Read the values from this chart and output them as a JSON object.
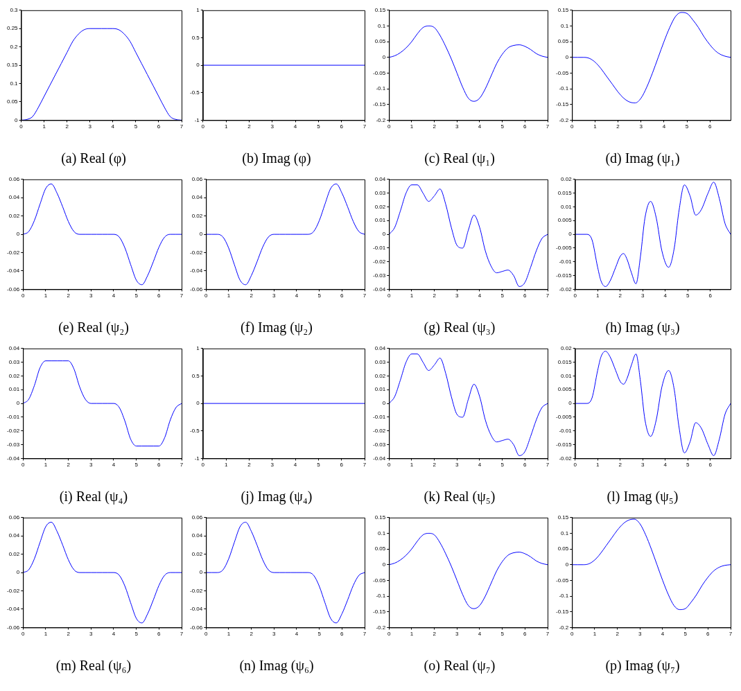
{
  "chart_data": [
    {
      "type": "line",
      "title": "(a) Real (φ)",
      "x": [
        0,
        0.25,
        0.5,
        0.75,
        1,
        1.25,
        1.5,
        1.75,
        2,
        2.25,
        2.5,
        2.75,
        3,
        3.25,
        3.5,
        3.75,
        4,
        4.25,
        4.5,
        4.75,
        5,
        5.25,
        5.5,
        5.75,
        6,
        6.25,
        6.5,
        6.75,
        7
      ],
      "xlim": [
        0,
        7
      ],
      "xticks": [
        0,
        1,
        2,
        3,
        4,
        5,
        6,
        7
      ],
      "ylim": [
        0,
        0.3
      ],
      "yticks": [
        0,
        0.05,
        0.1,
        0.15,
        0.2,
        0.25,
        0.3
      ],
      "series": [
        {
          "color": "#0000ff",
          "values": [
            0,
            0.002,
            0.01,
            0.035,
            0.065,
            0.095,
            0.125,
            0.155,
            0.185,
            0.215,
            0.235,
            0.247,
            0.25,
            0.25,
            0.25,
            0.25,
            0.25,
            0.247,
            0.235,
            0.215,
            0.185,
            0.155,
            0.125,
            0.095,
            0.065,
            0.035,
            0.01,
            0.002,
            0
          ]
        }
      ]
    },
    {
      "type": "line",
      "title": "(b) Imag (φ)",
      "x": [
        0,
        7
      ],
      "xlim": [
        0,
        7
      ],
      "xticks": [
        0,
        1,
        2,
        3,
        4,
        5,
        6,
        7
      ],
      "ylim": [
        -1,
        1
      ],
      "yticks": [
        -1,
        -0.5,
        0,
        0.5,
        1
      ],
      "series": [
        {
          "color": "#0000ff",
          "values": [
            0,
            0
          ]
        }
      ]
    },
    {
      "type": "line",
      "title": "(c) Real (ψ₁)",
      "x": [
        0,
        0.25,
        0.5,
        0.75,
        1,
        1.25,
        1.5,
        1.75,
        2,
        2.25,
        2.5,
        2.75,
        3,
        3.25,
        3.5,
        3.75,
        4,
        4.25,
        4.5,
        4.75,
        5,
        5.25,
        5.5,
        5.75,
        6,
        6.25,
        6.5,
        6.75,
        7
      ],
      "xlim": [
        0,
        7
      ],
      "xticks": [
        0,
        1,
        2,
        3,
        4,
        5,
        6,
        7
      ],
      "ylim": [
        -0.2,
        0.15
      ],
      "yticks": [
        -0.2,
        -0.15,
        -0.1,
        -0.05,
        0,
        0.05,
        0.1,
        0.15
      ],
      "series": [
        {
          "color": "#0000ff",
          "values": [
            0,
            0.005,
            0.015,
            0.03,
            0.05,
            0.075,
            0.095,
            0.1,
            0.095,
            0.07,
            0.035,
            -0.005,
            -0.05,
            -0.095,
            -0.13,
            -0.14,
            -0.13,
            -0.1,
            -0.06,
            -0.02,
            0.01,
            0.03,
            0.038,
            0.04,
            0.035,
            0.025,
            0.012,
            0.004,
            0
          ]
        }
      ]
    },
    {
      "type": "line",
      "title": "(d) Imag (ψ₁)",
      "x": [
        0,
        0.25,
        0.5,
        0.75,
        1,
        1.25,
        1.5,
        1.75,
        2,
        2.25,
        2.5,
        2.75,
        3,
        3.25,
        3.5,
        3.75,
        4,
        4.25,
        4.5,
        4.75,
        5,
        5.25,
        5.5,
        5.75,
        6,
        6.25,
        6.5,
        6.75,
        6.9
      ],
      "xlim": [
        0,
        6.9
      ],
      "xticks": [
        0,
        1,
        2,
        3,
        4,
        5,
        6
      ],
      "ylim": [
        -0.2,
        0.15
      ],
      "yticks": [
        -0.2,
        -0.15,
        -0.1,
        -0.05,
        0,
        0.05,
        0.1,
        0.15
      ],
      "series": [
        {
          "color": "#0000ff",
          "values": [
            0,
            0,
            0,
            -0.003,
            -0.015,
            -0.035,
            -0.06,
            -0.085,
            -0.11,
            -0.13,
            -0.142,
            -0.145,
            -0.13,
            -0.095,
            -0.05,
            0,
            0.05,
            0.095,
            0.13,
            0.143,
            0.14,
            0.12,
            0.095,
            0.065,
            0.04,
            0.02,
            0.008,
            0.002,
            0
          ]
        }
      ]
    },
    {
      "type": "line",
      "title": "(e) Real (ψ₂)",
      "x": [
        0,
        0.25,
        0.5,
        0.75,
        1,
        1.25,
        1.5,
        1.75,
        2,
        2.25,
        2.5,
        2.75,
        3,
        3.25,
        3.5,
        3.75,
        4,
        4.25,
        4.5,
        4.75,
        5,
        5.25,
        5.5,
        5.75,
        6,
        6.25,
        6.5,
        6.75,
        7
      ],
      "xlim": [
        0,
        7
      ],
      "xticks": [
        0,
        1,
        2,
        3,
        4,
        5,
        6,
        7
      ],
      "ylim": [
        -0.06,
        0.06
      ],
      "yticks": [
        -0.06,
        -0.04,
        -0.02,
        0,
        0.02,
        0.04,
        0.06
      ],
      "series": [
        {
          "color": "#0000ff",
          "values": [
            0,
            0.003,
            0.015,
            0.033,
            0.05,
            0.055,
            0.045,
            0.03,
            0.014,
            0.003,
            0,
            0,
            0,
            0,
            0,
            0,
            0,
            -0.003,
            -0.015,
            -0.033,
            -0.05,
            -0.055,
            -0.045,
            -0.03,
            -0.014,
            -0.003,
            0,
            0,
            0
          ]
        }
      ]
    },
    {
      "type": "line",
      "title": "(f) Imag (ψ₂)",
      "x": [
        0,
        0.25,
        0.5,
        0.75,
        1,
        1.25,
        1.5,
        1.75,
        2,
        2.25,
        2.5,
        2.75,
        3,
        3.25,
        3.5,
        3.75,
        4,
        4.25,
        4.5,
        4.75,
        5,
        5.25,
        5.5,
        5.75,
        6,
        6.25,
        6.5,
        6.75,
        7
      ],
      "xlim": [
        0,
        7
      ],
      "xticks": [
        0,
        1,
        2,
        3,
        4,
        5,
        6,
        7
      ],
      "ylim": [
        -0.06,
        0.06
      ],
      "yticks": [
        -0.06,
        -0.04,
        -0.02,
        0,
        0.02,
        0.04,
        0.06
      ],
      "series": [
        {
          "color": "#0000ff",
          "values": [
            0,
            0,
            0,
            -0.003,
            -0.015,
            -0.033,
            -0.05,
            -0.055,
            -0.045,
            -0.03,
            -0.014,
            -0.003,
            0,
            0,
            0,
            0,
            0,
            0,
            0,
            0.003,
            0.015,
            0.033,
            0.05,
            0.055,
            0.045,
            0.03,
            0.014,
            0.003,
            0
          ]
        }
      ]
    },
    {
      "type": "line",
      "title": "(g) Real (ψ₃)",
      "x": [
        0,
        0.25,
        0.5,
        0.75,
        1,
        1.25,
        1.5,
        1.75,
        2,
        2.25,
        2.5,
        2.75,
        3,
        3.25,
        3.5,
        3.75,
        4,
        4.25,
        4.5,
        4.75,
        5,
        5.25,
        5.5,
        5.75,
        6,
        6.25,
        6.5,
        6.75,
        7
      ],
      "xlim": [
        0,
        7
      ],
      "xticks": [
        0,
        1,
        2,
        3,
        4,
        5,
        6,
        7
      ],
      "ylim": [
        -0.04,
        0.04
      ],
      "yticks": [
        -0.04,
        -0.03,
        -0.02,
        -0.01,
        0,
        0.01,
        0.02,
        0.03,
        0.04
      ],
      "series": [
        {
          "color": "#0000ff",
          "values": [
            0,
            0.005,
            0.017,
            0.03,
            0.036,
            0.036,
            0.03,
            0.024,
            0.028,
            0.033,
            0.022,
            0.005,
            -0.008,
            -0.01,
            0.003,
            0.014,
            0.005,
            -0.012,
            -0.023,
            -0.028,
            -0.027,
            -0.026,
            -0.03,
            -0.038,
            -0.035,
            -0.024,
            -0.012,
            -0.003,
            0
          ]
        }
      ]
    },
    {
      "type": "line",
      "title": "(h) Imag (ψ₃)",
      "x": [
        0,
        0.5,
        0.75,
        1,
        1.15,
        1.35,
        1.55,
        1.8,
        2,
        2.15,
        2.3,
        2.5,
        2.7,
        2.9,
        3.1,
        3.35,
        3.6,
        3.85,
        4.15,
        4.4,
        4.6,
        4.85,
        5.1,
        5.35,
        5.6,
        5.9,
        6.15,
        6.4,
        6.65,
        6.9
      ],
      "xlim": [
        0,
        6.9
      ],
      "xticks": [
        0,
        1,
        2,
        3,
        4,
        5,
        6
      ],
      "ylim": [
        -0.02,
        0.02
      ],
      "yticks": [
        -0.02,
        -0.015,
        -0.01,
        -0.005,
        0,
        0.005,
        0.01,
        0.015,
        0.02
      ],
      "series": [
        {
          "color": "#0000ff",
          "values": [
            0,
            0,
            -0.002,
            -0.012,
            -0.017,
            -0.019,
            -0.017,
            -0.012,
            -0.008,
            -0.007,
            -0.009,
            -0.014,
            -0.018,
            -0.008,
            0.006,
            0.012,
            0.006,
            -0.006,
            -0.012,
            -0.005,
            0.008,
            0.018,
            0.014,
            0.007,
            0.009,
            0.015,
            0.019,
            0.013,
            0.004,
            0
          ]
        }
      ]
    },
    {
      "type": "line",
      "title": "(i) Real (ψ₄)",
      "x": [
        0,
        0.25,
        0.5,
        0.75,
        1,
        1.25,
        1.5,
        1.75,
        2,
        2.25,
        2.5,
        2.75,
        3,
        3.25,
        3.5,
        3.75,
        4,
        4.25,
        4.5,
        4.75,
        5,
        5.25,
        5.5,
        5.75,
        6,
        6.25,
        6.5,
        6.75,
        7
      ],
      "xlim": [
        0,
        7
      ],
      "xticks": [
        0,
        1,
        2,
        3,
        4,
        5,
        6,
        7
      ],
      "ylim": [
        -0.04,
        0.04
      ],
      "yticks": [
        -0.04,
        -0.03,
        -0.02,
        -0.01,
        0,
        0.01,
        0.02,
        0.03,
        0.04
      ],
      "series": [
        {
          "color": "#0000ff",
          "values": [
            0,
            0.003,
            0.013,
            0.026,
            0.031,
            0.031,
            0.031,
            0.031,
            0.031,
            0.025,
            0.012,
            0.003,
            0,
            0,
            0,
            0,
            0,
            -0.003,
            -0.013,
            -0.026,
            -0.031,
            -0.031,
            -0.031,
            -0.031,
            -0.031,
            -0.025,
            -0.012,
            -0.003,
            0
          ]
        }
      ]
    },
    {
      "type": "line",
      "title": "(j) Imag (ψ₄)",
      "x": [
        0,
        7
      ],
      "xlim": [
        0,
        7
      ],
      "xticks": [
        0,
        1,
        2,
        3,
        4,
        5,
        6,
        7
      ],
      "ylim": [
        -1,
        1
      ],
      "yticks": [
        -1,
        -0.5,
        0,
        0.5,
        1
      ],
      "series": [
        {
          "color": "#0000ff",
          "values": [
            0,
            0
          ]
        }
      ]
    },
    {
      "type": "line",
      "title": "(k) Real (ψ₅)",
      "x": [
        0,
        0.25,
        0.5,
        0.75,
        1,
        1.25,
        1.5,
        1.75,
        2,
        2.25,
        2.5,
        2.75,
        3,
        3.25,
        3.5,
        3.75,
        4,
        4.25,
        4.5,
        4.75,
        5,
        5.25,
        5.5,
        5.75,
        6,
        6.25,
        6.5,
        6.75,
        7
      ],
      "xlim": [
        0,
        7
      ],
      "xticks": [
        0,
        1,
        2,
        3,
        4,
        5,
        6,
        7
      ],
      "ylim": [
        -0.04,
        0.04
      ],
      "yticks": [
        -0.04,
        -0.03,
        -0.02,
        -0.01,
        0,
        0.01,
        0.02,
        0.03,
        0.04
      ],
      "series": [
        {
          "color": "#0000ff",
          "values": [
            0,
            0.005,
            0.017,
            0.03,
            0.036,
            0.036,
            0.03,
            0.024,
            0.028,
            0.033,
            0.022,
            0.005,
            -0.008,
            -0.01,
            0.003,
            0.014,
            0.005,
            -0.012,
            -0.023,
            -0.028,
            -0.027,
            -0.026,
            -0.03,
            -0.038,
            -0.035,
            -0.024,
            -0.012,
            -0.003,
            0
          ]
        }
      ]
    },
    {
      "type": "line",
      "title": "(l) Imag (ψ₅)",
      "x": [
        0,
        0.5,
        0.75,
        1,
        1.15,
        1.35,
        1.55,
        1.8,
        2,
        2.15,
        2.3,
        2.5,
        2.7,
        2.9,
        3.1,
        3.35,
        3.6,
        3.85,
        4.15,
        4.4,
        4.6,
        4.85,
        5.1,
        5.35,
        5.6,
        5.9,
        6.15,
        6.4,
        6.65,
        6.9
      ],
      "xlim": [
        0,
        6.9
      ],
      "xticks": [
        0,
        1,
        2,
        3,
        4,
        5,
        6
      ],
      "ylim": [
        -0.02,
        0.02
      ],
      "yticks": [
        -0.02,
        -0.015,
        -0.01,
        -0.005,
        0,
        0.005,
        0.01,
        0.015,
        0.02
      ],
      "series": [
        {
          "color": "#0000ff",
          "values": [
            0,
            0,
            0.002,
            0.012,
            0.017,
            0.019,
            0.017,
            0.012,
            0.008,
            0.007,
            0.009,
            0.014,
            0.018,
            0.008,
            -0.006,
            -0.012,
            -0.006,
            0.006,
            0.012,
            0.005,
            -0.008,
            -0.018,
            -0.014,
            -0.007,
            -0.009,
            -0.015,
            -0.019,
            -0.013,
            -0.004,
            0
          ]
        }
      ]
    },
    {
      "type": "line",
      "title": "(m) Real (ψ₆)",
      "x": [
        0,
        0.25,
        0.5,
        0.75,
        1,
        1.25,
        1.5,
        1.75,
        2,
        2.25,
        2.5,
        2.75,
        3,
        3.25,
        3.5,
        3.75,
        4,
        4.25,
        4.5,
        4.75,
        5,
        5.25,
        5.5,
        5.75,
        6,
        6.25,
        6.5,
        6.75,
        7
      ],
      "xlim": [
        0,
        7
      ],
      "xticks": [
        0,
        1,
        2,
        3,
        4,
        5,
        6,
        7
      ],
      "ylim": [
        -0.06,
        0.06
      ],
      "yticks": [
        -0.06,
        -0.04,
        -0.02,
        0,
        0.02,
        0.04,
        0.06
      ],
      "series": [
        {
          "color": "#0000ff",
          "values": [
            0,
            0.003,
            0.015,
            0.033,
            0.05,
            0.055,
            0.045,
            0.03,
            0.014,
            0.003,
            0,
            0,
            0,
            0,
            0,
            0,
            0,
            -0.003,
            -0.015,
            -0.033,
            -0.05,
            -0.055,
            -0.045,
            -0.03,
            -0.014,
            -0.003,
            0,
            0,
            0
          ]
        }
      ]
    },
    {
      "type": "line",
      "title": "(n) Imag (ψ₆)",
      "x": [
        0,
        0.25,
        0.5,
        0.75,
        1,
        1.25,
        1.5,
        1.75,
        2,
        2.25,
        2.5,
        2.75,
        3,
        3.25,
        3.5,
        3.75,
        4,
        4.25,
        4.5,
        4.75,
        5,
        5.25,
        5.5,
        5.75,
        6,
        6.25,
        6.5,
        6.75,
        7
      ],
      "xlim": [
        0,
        7
      ],
      "xticks": [
        0,
        1,
        2,
        3,
        4,
        5,
        6,
        7
      ],
      "ylim": [
        -0.06,
        0.06
      ],
      "yticks": [
        -0.06,
        -0.04,
        -0.02,
        0,
        0.02,
        0.04,
        0.06
      ],
      "series": [
        {
          "color": "#0000ff",
          "values": [
            0,
            0,
            0,
            0.003,
            0.015,
            0.033,
            0.05,
            0.055,
            0.045,
            0.03,
            0.014,
            0.003,
            0,
            0,
            0,
            0,
            0,
            0,
            0,
            -0.003,
            -0.015,
            -0.033,
            -0.05,
            -0.055,
            -0.045,
            -0.03,
            -0.014,
            -0.003,
            0
          ]
        }
      ]
    },
    {
      "type": "line",
      "title": "(o) Real (ψ₇)",
      "x": [
        0,
        0.25,
        0.5,
        0.75,
        1,
        1.25,
        1.5,
        1.75,
        2,
        2.25,
        2.5,
        2.75,
        3,
        3.25,
        3.5,
        3.75,
        4,
        4.25,
        4.5,
        4.75,
        5,
        5.25,
        5.5,
        5.75,
        6,
        6.25,
        6.5,
        6.75,
        7
      ],
      "xlim": [
        0,
        7
      ],
      "xticks": [
        0,
        1,
        2,
        3,
        4,
        5,
        6,
        7
      ],
      "ylim": [
        -0.2,
        0.15
      ],
      "yticks": [
        -0.2,
        -0.15,
        -0.1,
        -0.05,
        0,
        0.05,
        0.1,
        0.15
      ],
      "series": [
        {
          "color": "#0000ff",
          "values": [
            0,
            0.005,
            0.015,
            0.03,
            0.05,
            0.075,
            0.095,
            0.1,
            0.095,
            0.07,
            0.035,
            -0.005,
            -0.05,
            -0.095,
            -0.13,
            -0.14,
            -0.13,
            -0.1,
            -0.06,
            -0.02,
            0.01,
            0.03,
            0.038,
            0.04,
            0.035,
            0.025,
            0.012,
            0.004,
            0
          ]
        }
      ]
    },
    {
      "type": "line",
      "title": "(p) Imag (ψ₇)",
      "x": [
        0,
        0.25,
        0.5,
        0.75,
        1,
        1.25,
        1.5,
        1.75,
        2,
        2.25,
        2.5,
        2.75,
        3,
        3.25,
        3.5,
        3.75,
        4,
        4.25,
        4.5,
        4.75,
        5,
        5.25,
        5.5,
        5.75,
        6,
        6.25,
        6.5,
        6.75,
        7
      ],
      "xlim": [
        0,
        7
      ],
      "xticks": [
        0,
        1,
        2,
        3,
        4,
        5,
        6,
        7
      ],
      "ylim": [
        -0.2,
        0.15
      ],
      "yticks": [
        -0.2,
        -0.15,
        -0.1,
        -0.05,
        0,
        0.05,
        0.1,
        0.15
      ],
      "series": [
        {
          "color": "#0000ff",
          "values": [
            0,
            0,
            0,
            0.003,
            0.015,
            0.035,
            0.06,
            0.085,
            0.11,
            0.13,
            0.142,
            0.145,
            0.13,
            0.095,
            0.05,
            0,
            -0.05,
            -0.095,
            -0.13,
            -0.143,
            -0.14,
            -0.12,
            -0.095,
            -0.065,
            -0.04,
            -0.02,
            -0.008,
            -0.002,
            0
          ]
        }
      ]
    }
  ]
}
